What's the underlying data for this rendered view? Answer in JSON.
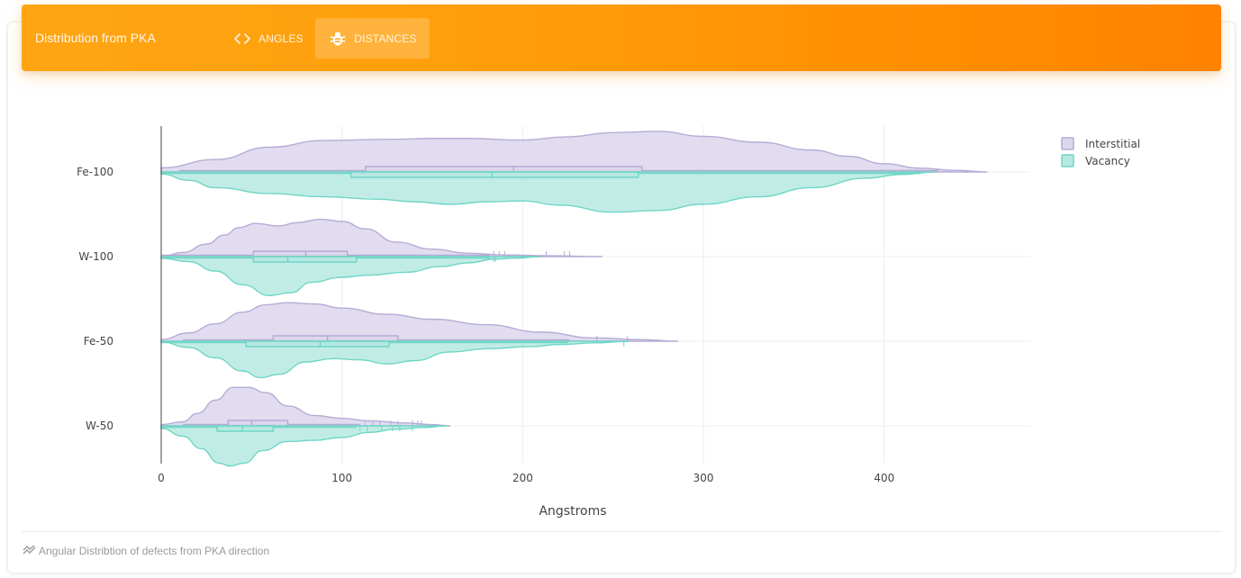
{
  "header": {
    "title": "Distribution from PKA",
    "tabs": [
      {
        "label": "ANGLES",
        "icon": "code-icon"
      },
      {
        "label": "DISTANCES",
        "icon": "bug-icon"
      }
    ]
  },
  "footer": {
    "icon": "trend-icon",
    "text": "Angular Distribtion of defects from PKA direction"
  },
  "colors": {
    "header_start": "#ffa513",
    "header_end": "#ff8200",
    "interstitial_fill": "#dcd6ec",
    "interstitial_line": "#b7abd6",
    "vacancy_fill": "#b6e9e1",
    "vacancy_line": "#6fd6c6"
  },
  "chart_data": {
    "type": "violin",
    "orientation": "horizontal",
    "xlabel": "Angstroms",
    "xlim": [
      0,
      480
    ],
    "xticks": [
      0,
      100,
      200,
      300,
      400
    ],
    "categories": [
      "Fe-100",
      "W-100",
      "Fe-50",
      "W-50"
    ],
    "legend": {
      "position": "top-right",
      "entries": [
        "Interstitial",
        "Vacancy"
      ]
    },
    "series": [
      {
        "name": "Interstitial",
        "side": "positive",
        "color": "#b7abd6",
        "violins": [
          {
            "category": "Fe-100",
            "max": 457,
            "density": [
              [
                0,
                0.1
              ],
              [
                30,
                0.3
              ],
              [
                60,
                0.6
              ],
              [
                90,
                0.76
              ],
              [
                130,
                0.79
              ],
              [
                150,
                0.81
              ],
              [
                170,
                0.81
              ],
              [
                200,
                0.77
              ],
              [
                225,
                0.85
              ],
              [
                250,
                0.95
              ],
              [
                275,
                0.98
              ],
              [
                300,
                0.86
              ],
              [
                330,
                0.72
              ],
              [
                360,
                0.53
              ],
              [
                380,
                0.38
              ],
              [
                400,
                0.2
              ],
              [
                420,
                0.09
              ],
              [
                440,
                0.04
              ],
              [
                457,
                0
              ]
            ],
            "box": {
              "whisker_low": 10,
              "q1": 113,
              "median": 195,
              "q3": 266,
              "whisker_high": 430
            },
            "outliers": []
          },
          {
            "category": "W-100",
            "max": 244,
            "density": [
              [
                0,
                0
              ],
              [
                12,
                0.1
              ],
              [
                25,
                0.3
              ],
              [
                35,
                0.52
              ],
              [
                43,
                0.7
              ],
              [
                52,
                0.8
              ],
              [
                65,
                0.74
              ],
              [
                75,
                0.82
              ],
              [
                88,
                0.9
              ],
              [
                100,
                0.85
              ],
              [
                113,
                0.67
              ],
              [
                130,
                0.35
              ],
              [
                150,
                0.18
              ],
              [
                170,
                0.08
              ],
              [
                190,
                0.04
              ],
              [
                215,
                0.02
              ],
              [
                244,
                0
              ]
            ],
            "box": {
              "whisker_low": 0,
              "q1": 51,
              "median": 80,
              "q3": 103,
              "whisker_high": 182
            },
            "outliers": [
              184,
              187,
              190,
              213,
              223,
              226
            ]
          },
          {
            "category": "Fe-50",
            "max": 286,
            "density": [
              [
                0,
                0.04
              ],
              [
                15,
                0.2
              ],
              [
                30,
                0.42
              ],
              [
                45,
                0.7
              ],
              [
                58,
                0.88
              ],
              [
                70,
                0.93
              ],
              [
                85,
                0.9
              ],
              [
                100,
                0.8
              ],
              [
                125,
                0.65
              ],
              [
                150,
                0.53
              ],
              [
                180,
                0.4
              ],
              [
                210,
                0.22
              ],
              [
                240,
                0.08
              ],
              [
                265,
                0.04
              ],
              [
                286,
                0
              ]
            ],
            "box": {
              "whisker_low": 12,
              "q1": 62,
              "median": 92,
              "q3": 131,
              "whisker_high": 226
            },
            "outliers": [
              241,
              258
            ]
          },
          {
            "category": "W-50",
            "max": 160,
            "density": [
              [
                0,
                0.03
              ],
              [
                12,
                0.1
              ],
              [
                20,
                0.3
              ],
              [
                30,
                0.62
              ],
              [
                40,
                0.93
              ],
              [
                48,
                0.93
              ],
              [
                58,
                0.8
              ],
              [
                70,
                0.48
              ],
              [
                85,
                0.25
              ],
              [
                100,
                0.18
              ],
              [
                115,
                0.12
              ],
              [
                135,
                0.07
              ],
              [
                150,
                0.03
              ],
              [
                160,
                0
              ]
            ],
            "box": {
              "whisker_low": 12,
              "q1": 37,
              "median": 50,
              "q3": 70,
              "whisker_high": 110
            },
            "outliers": [
              113,
              117,
              121,
              127,
              131,
              139,
              142,
              144
            ]
          }
        ]
      },
      {
        "name": "Vacancy",
        "side": "negative",
        "color": "#6fd6c6",
        "violins": [
          {
            "category": "Fe-100",
            "max": 428,
            "density": [
              [
                0,
                0.05
              ],
              [
                15,
                0.2
              ],
              [
                30,
                0.38
              ],
              [
                60,
                0.52
              ],
              [
                90,
                0.6
              ],
              [
                120,
                0.66
              ],
              [
                140,
                0.72
              ],
              [
                160,
                0.78
              ],
              [
                180,
                0.72
              ],
              [
                200,
                0.7
              ],
              [
                220,
                0.8
              ],
              [
                250,
                0.97
              ],
              [
                275,
                0.93
              ],
              [
                300,
                0.78
              ],
              [
                330,
                0.6
              ],
              [
                360,
                0.38
              ],
              [
                390,
                0.15
              ],
              [
                410,
                0.06
              ],
              [
                428,
                0
              ]
            ],
            "box": {
              "whisker_low": 0,
              "q1": 105,
              "median": 183,
              "q3": 264,
              "whisker_high": 420
            },
            "outliers": []
          },
          {
            "category": "W-100",
            "max": 210,
            "density": [
              [
                0,
                0.04
              ],
              [
                15,
                0.12
              ],
              [
                30,
                0.35
              ],
              [
                45,
                0.68
              ],
              [
                60,
                0.94
              ],
              [
                72,
                0.87
              ],
              [
                83,
                0.62
              ],
              [
                100,
                0.5
              ],
              [
                115,
                0.45
              ],
              [
                135,
                0.38
              ],
              [
                155,
                0.24
              ],
              [
                170,
                0.15
              ],
              [
                185,
                0.06
              ],
              [
                195,
                0.04
              ],
              [
                210,
                0
              ]
            ],
            "box": {
              "whisker_low": 0,
              "q1": 51,
              "median": 70,
              "q3": 108,
              "whisker_high": 182
            },
            "outliers": [
              184,
              185
            ]
          },
          {
            "category": "Fe-50",
            "max": 259,
            "density": [
              [
                0,
                0.02
              ],
              [
                15,
                0.15
              ],
              [
                30,
                0.4
              ],
              [
                45,
                0.72
              ],
              [
                55,
                0.88
              ],
              [
                65,
                0.8
              ],
              [
                80,
                0.5
              ],
              [
                95,
                0.42
              ],
              [
                110,
                0.45
              ],
              [
                125,
                0.55
              ],
              [
                140,
                0.47
              ],
              [
                160,
                0.26
              ],
              [
                180,
                0.18
              ],
              [
                205,
                0.13
              ],
              [
                220,
                0.08
              ],
              [
                240,
                0.04
              ],
              [
                259,
                0
              ]
            ],
            "box": {
              "whisker_low": 0,
              "q1": 47,
              "median": 88,
              "q3": 126,
              "whisker_high": 225
            },
            "outliers": [
              256
            ]
          },
          {
            "category": "W-50",
            "max": 158,
            "density": [
              [
                0,
                0.06
              ],
              [
                12,
                0.25
              ],
              [
                22,
                0.55
              ],
              [
                32,
                0.9
              ],
              [
                38,
                0.97
              ],
              [
                46,
                0.9
              ],
              [
                56,
                0.6
              ],
              [
                70,
                0.38
              ],
              [
                85,
                0.35
              ],
              [
                100,
                0.28
              ],
              [
                115,
                0.16
              ],
              [
                130,
                0.08
              ],
              [
                145,
                0.04
              ],
              [
                158,
                0
              ]
            ],
            "box": {
              "whisker_low": 0,
              "q1": 31,
              "median": 45,
              "q3": 62,
              "whisker_high": 108
            },
            "outliers": [
              110,
              114,
              122,
              128,
              132,
              139
            ]
          }
        ]
      }
    ]
  }
}
